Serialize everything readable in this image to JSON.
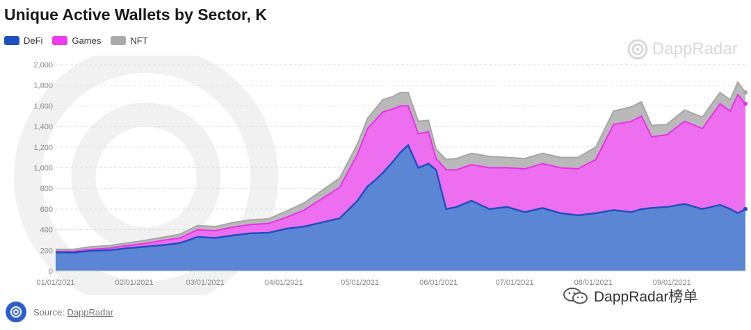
{
  "title": "Unique Active Wallets by Sector, K",
  "legend": [
    {
      "label": "DeFi",
      "color": "#1e4fc2"
    },
    {
      "label": "Games",
      "color": "#ee3bee"
    },
    {
      "label": "NFT",
      "color": "#a9a9a9"
    }
  ],
  "brand": {
    "text": "DappRadar",
    "icon": "dappradar-logo-icon"
  },
  "source": {
    "prefix": "Source: ",
    "link": "DappRadar"
  },
  "watermark": {
    "text": "DappRadar榜单",
    "icon": "wechat-icon"
  },
  "colors": {
    "defi_fill": "#5a86d4",
    "defi_line": "#1e4fc2",
    "games_fill": "#ee6ef0",
    "games_line": "#e830e8",
    "nft_fill": "#b9b9b9",
    "nft_line": "#a6a6a6"
  },
  "chart_data": {
    "type": "area",
    "stacked": true,
    "title": "Unique Active Wallets by Sector, K",
    "xlabel": "",
    "ylabel": "",
    "ylim": [
      0,
      2000
    ],
    "yticks": [
      0,
      200,
      400,
      600,
      800,
      1000,
      1200,
      1400,
      1600,
      1800,
      2000
    ],
    "ytick_labels": [
      "0",
      "200",
      "400",
      "600",
      "800",
      "1,000",
      "1,200",
      "1,400",
      "1,600",
      "1,800",
      "2,000"
    ],
    "xlim": [
      "01/01/2021",
      "09/30/2021"
    ],
    "xticks": [
      "01/01/2021",
      "02/01/2021",
      "03/01/2021",
      "04/01/2021",
      "05/01/2021",
      "06/01/2021",
      "07/01/2021",
      "08/01/2021",
      "09/01/2021"
    ],
    "grid": "horizontal dashed",
    "legend_position": "top-left",
    "x": [
      "01/01/2021",
      "01/08/2021",
      "01/15/2021",
      "01/22/2021",
      "01/29/2021",
      "02/05/2021",
      "02/12/2021",
      "02/19/2021",
      "02/26/2021",
      "03/05/2021",
      "03/12/2021",
      "03/19/2021",
      "03/26/2021",
      "04/02/2021",
      "04/09/2021",
      "04/16/2021",
      "04/23/2021",
      "04/30/2021",
      "05/04/2021",
      "05/07/2021",
      "05/10/2021",
      "05/14/2021",
      "05/17/2021",
      "05/20/2021",
      "05/24/2021",
      "05/28/2021",
      "05/31/2021",
      "06/04/2021",
      "06/08/2021",
      "06/14/2021",
      "06/21/2021",
      "06/28/2021",
      "07/05/2021",
      "07/12/2021",
      "07/19/2021",
      "07/26/2021",
      "08/02/2021",
      "08/09/2021",
      "08/16/2021",
      "08/20/2021",
      "08/24/2021",
      "08/30/2021",
      "09/06/2021",
      "09/13/2021",
      "09/20/2021",
      "09/24/2021",
      "09/27/2021",
      "09/30/2021"
    ],
    "series": [
      {
        "name": "DeFi",
        "values": [
          180,
          178,
          195,
          200,
          220,
          235,
          250,
          270,
          330,
          320,
          345,
          365,
          370,
          410,
          430,
          470,
          510,
          680,
          820,
          880,
          950,
          1060,
          1150,
          1220,
          1000,
          1040,
          980,
          600,
          620,
          680,
          600,
          620,
          570,
          610,
          560,
          540,
          560,
          590,
          570,
          600,
          610,
          620,
          650,
          600,
          640,
          600,
          560,
          600
        ]
      },
      {
        "name": "Games",
        "values": [
          10,
          12,
          15,
          20,
          25,
          30,
          45,
          50,
          70,
          70,
          80,
          85,
          90,
          110,
          160,
          230,
          300,
          450,
          560,
          580,
          590,
          510,
          450,
          380,
          330,
          310,
          110,
          380,
          360,
          350,
          400,
          380,
          420,
          430,
          440,
          450,
          520,
          830,
          880,
          900,
          690,
          700,
          800,
          780,
          980,
          950,
          1150,
          1020
        ]
      },
      {
        "name": "NFT",
        "values": [
          20,
          20,
          25,
          25,
          25,
          30,
          30,
          35,
          40,
          40,
          45,
          45,
          45,
          60,
          70,
          80,
          90,
          100,
          100,
          110,
          120,
          120,
          130,
          130,
          120,
          110,
          90,
          100,
          110,
          110,
          110,
          100,
          100,
          100,
          100,
          110,
          120,
          130,
          140,
          140,
          110,
          100,
          110,
          110,
          110,
          110,
          120,
          110
        ]
      }
    ]
  }
}
